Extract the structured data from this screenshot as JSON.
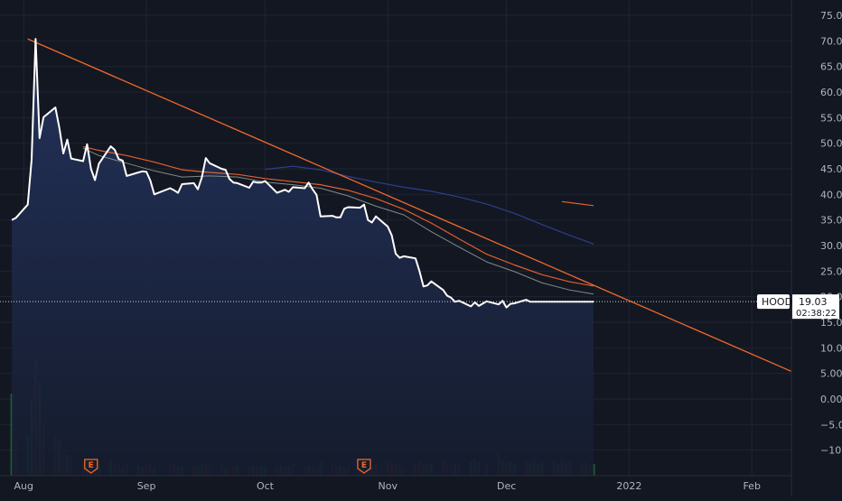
{
  "chart_data": {
    "type": "area",
    "symbol": "HOOD",
    "last_price": "19.03",
    "countdown": "02:38:22",
    "earnings_marker": "E",
    "y_ticks": [
      "75.00",
      "70.00",
      "65.00",
      "60.00",
      "55.00",
      "50.00",
      "45.00",
      "40.00",
      "35.00",
      "30.00",
      "25.00",
      "20.00",
      "15.00",
      "10.00",
      "5.00",
      "0.00",
      "−5.00",
      "−10.00"
    ],
    "y_tick_values": [
      75,
      70,
      65,
      60,
      55,
      50,
      45,
      40,
      35,
      30,
      25,
      20,
      15,
      10,
      5,
      0,
      -5,
      -10
    ],
    "x_ticks": [
      "Aug",
      "Sep",
      "Oct",
      "Nov",
      "Dec",
      "2022",
      "Feb"
    ],
    "x_tick_dates": [
      "2021-08-01",
      "2021-09-01",
      "2021-10-01",
      "2021-11-01",
      "2021-12-01",
      "2022-01-01",
      "2022-02-01"
    ],
    "ylim": [
      -15,
      78
    ],
    "xlim": [
      "2021-07-26",
      "2022-02-11"
    ],
    "grid": true,
    "colors": {
      "background": "#131722",
      "grid": "#1f2433",
      "price": "#ffffff",
      "area_top": "#24345f",
      "area_bottom": "#151c2e",
      "trendline": "#f0692a",
      "ma_short": "#e0612a",
      "ma_mid": "#7e8a86",
      "ma_long": "#2d3f8c",
      "last_price_box": "#ffffff",
      "volume_up": "#1e6b3a",
      "volume_down": "#6e2a2e",
      "earnings": "#f0692a"
    },
    "series": [
      {
        "name": "HOOD",
        "role": "price",
        "x": [
          "2021-07-29",
          "2021-07-30",
          "2021-08-02",
          "2021-08-03",
          "2021-08-04",
          "2021-08-05",
          "2021-08-06",
          "2021-08-09",
          "2021-08-10",
          "2021-08-11",
          "2021-08-12",
          "2021-08-13",
          "2021-08-16",
          "2021-08-17",
          "2021-08-18",
          "2021-08-19",
          "2021-08-20",
          "2021-08-23",
          "2021-08-24",
          "2021-08-25",
          "2021-08-26",
          "2021-08-27",
          "2021-08-30",
          "2021-08-31",
          "2021-09-01",
          "2021-09-02",
          "2021-09-03",
          "2021-09-07",
          "2021-09-08",
          "2021-09-09",
          "2021-09-10",
          "2021-09-13",
          "2021-09-14",
          "2021-09-15",
          "2021-09-16",
          "2021-09-17",
          "2021-09-20",
          "2021-09-21",
          "2021-09-22",
          "2021-09-23",
          "2021-09-24",
          "2021-09-27",
          "2021-09-28",
          "2021-09-29",
          "2021-09-30",
          "2021-10-01",
          "2021-10-04",
          "2021-10-05",
          "2021-10-06",
          "2021-10-07",
          "2021-10-08",
          "2021-10-11",
          "2021-10-12",
          "2021-10-13",
          "2021-10-14",
          "2021-10-15",
          "2021-10-18",
          "2021-10-19",
          "2021-10-20",
          "2021-10-21",
          "2021-10-22",
          "2021-10-25",
          "2021-10-26",
          "2021-10-27",
          "2021-10-28",
          "2021-10-29",
          "2021-11-01",
          "2021-11-02",
          "2021-11-03",
          "2021-11-04",
          "2021-11-05",
          "2021-11-08",
          "2021-11-09",
          "2021-11-10",
          "2021-11-11",
          "2021-11-12",
          "2021-11-15",
          "2021-11-16",
          "2021-11-17",
          "2021-11-18",
          "2021-11-19",
          "2021-11-22",
          "2021-11-23",
          "2021-11-24",
          "2021-11-26",
          "2021-11-29",
          "2021-11-30",
          "2021-12-01",
          "2021-12-02",
          "2021-12-03",
          "2021-12-06",
          "2021-12-07",
          "2021-12-08",
          "2021-12-09",
          "2021-12-10",
          "2021-12-13",
          "2021-12-14",
          "2021-12-15",
          "2021-12-16",
          "2021-12-17",
          "2021-12-20",
          "2021-12-21",
          "2021-12-22",
          "2021-12-23"
        ],
        "y": [
          35,
          35.4,
          38,
          46.8,
          70.4,
          51,
          55.1,
          57,
          53,
          48,
          50.7,
          47,
          46.5,
          49.8,
          45,
          42.8,
          46,
          49.4,
          48.7,
          46.9,
          46.6,
          43.6,
          44.3,
          44.5,
          44.4,
          42.7,
          40,
          41.2,
          40.8,
          40.3,
          42,
          42.2,
          41,
          43.3,
          47.1,
          46.1,
          45,
          44.8,
          43,
          42.3,
          42.2,
          41.3,
          42.5,
          42.3,
          42.3,
          42.6,
          40.3,
          40.6,
          40.9,
          40.5,
          41.4,
          41.2,
          42.3,
          41,
          39.9,
          35.7,
          35.8,
          35.5,
          35.5,
          37.2,
          37.5,
          37.4,
          38,
          35,
          34.5,
          35.7,
          33.7,
          32,
          28.4,
          27.6,
          27.9,
          27.5,
          25,
          22,
          22.2,
          23,
          21.3,
          20.2,
          19.8,
          19,
          19.2,
          18.1,
          18.9,
          18.2,
          19.1,
          18.5,
          19.2,
          17.9,
          18.6,
          18.7,
          19.4,
          19,
          19.03,
          19.03,
          19.03,
          19.03,
          19.03,
          19.03,
          19.03,
          19.03,
          19.03,
          19.03,
          19.03,
          19.03
        ]
      },
      {
        "name": "MA short",
        "role": "ma_short",
        "x": [
          "2021-08-16",
          "2021-08-20",
          "2021-08-27",
          "2021-09-03",
          "2021-09-10",
          "2021-09-17",
          "2021-09-24",
          "2021-10-01",
          "2021-10-08",
          "2021-10-15",
          "2021-10-22",
          "2021-10-29",
          "2021-11-05",
          "2021-11-12",
          "2021-11-19",
          "2021-11-26",
          "2021-12-03",
          "2021-12-10",
          "2021-12-17",
          "2021-12-23"
        ],
        "y": [
          49.3,
          48.6,
          47.6,
          46.3,
          44.8,
          44.3,
          43.9,
          43.1,
          42.5,
          41.9,
          40.8,
          39.2,
          37.1,
          34.4,
          31.3,
          28.3,
          26.2,
          24.3,
          22.9,
          22.1
        ]
      },
      {
        "name": "MA mid",
        "role": "ma_mid",
        "x": [
          "2021-08-16",
          "2021-08-20",
          "2021-08-27",
          "2021-09-03",
          "2021-09-10",
          "2021-09-17",
          "2021-09-24",
          "2021-10-01",
          "2021-10-08",
          "2021-10-15",
          "2021-10-22",
          "2021-10-29",
          "2021-11-05",
          "2021-11-12",
          "2021-11-19",
          "2021-11-26",
          "2021-12-03",
          "2021-12-10",
          "2021-12-17",
          "2021-12-23"
        ],
        "y": [
          49,
          47.6,
          46.1,
          44.6,
          43.4,
          43.6,
          43.4,
          42.4,
          41.9,
          41.2,
          39.7,
          37.7,
          36,
          32.7,
          29.7,
          26.8,
          24.9,
          22.7,
          21.3,
          20.5
        ]
      },
      {
        "name": "MA long",
        "role": "ma_long",
        "x": [
          "2021-10-01",
          "2021-10-08",
          "2021-10-15",
          "2021-10-22",
          "2021-10-29",
          "2021-11-05",
          "2021-11-12",
          "2021-11-19",
          "2021-11-26",
          "2021-12-03",
          "2021-12-10",
          "2021-12-17",
          "2021-12-23"
        ],
        "y": [
          44.9,
          45.5,
          44.8,
          43.5,
          42.4,
          41.4,
          40.6,
          39.5,
          38.1,
          36.3,
          34.1,
          32,
          30.3
        ]
      },
      {
        "name": "MA stub",
        "role": "ma_short",
        "x": [
          "2021-12-15",
          "2021-12-23"
        ],
        "y": [
          38.6,
          37.8
        ]
      },
      {
        "name": "Trendline",
        "role": "trendline",
        "x": [
          "2021-08-02",
          "2022-02-11"
        ],
        "y": [
          70.4,
          5.4
        ]
      }
    ],
    "volume": {
      "x": [
        "2021-07-29",
        "2021-07-30",
        "2021-08-02",
        "2021-08-03",
        "2021-08-04",
        "2021-08-05",
        "2021-08-06",
        "2021-08-09",
        "2021-08-10",
        "2021-08-11",
        "2021-08-12",
        "2021-08-13",
        "2021-08-16",
        "2021-08-17",
        "2021-08-18",
        "2021-08-19",
        "2021-08-20",
        "2021-08-23",
        "2021-08-24",
        "2021-08-25",
        "2021-08-26",
        "2021-08-27",
        "2021-08-30",
        "2021-08-31",
        "2021-09-01",
        "2021-09-02",
        "2021-09-03",
        "2021-09-07",
        "2021-09-08",
        "2021-09-09",
        "2021-09-10",
        "2021-09-13",
        "2021-09-14",
        "2021-09-15",
        "2021-09-16",
        "2021-09-17",
        "2021-09-20",
        "2021-09-21",
        "2021-09-22",
        "2021-09-23",
        "2021-09-24",
        "2021-09-27",
        "2021-09-28",
        "2021-09-29",
        "2021-09-30",
        "2021-10-01",
        "2021-10-04",
        "2021-10-05",
        "2021-10-06",
        "2021-10-07",
        "2021-10-08",
        "2021-10-11",
        "2021-10-12",
        "2021-10-13",
        "2021-10-14",
        "2021-10-15",
        "2021-10-18",
        "2021-10-19",
        "2021-10-20",
        "2021-10-21",
        "2021-10-22",
        "2021-10-25",
        "2021-10-26",
        "2021-10-27",
        "2021-10-28",
        "2021-10-29",
        "2021-11-01",
        "2021-11-02",
        "2021-11-03",
        "2021-11-04",
        "2021-11-05",
        "2021-11-08",
        "2021-11-09",
        "2021-11-10",
        "2021-11-11",
        "2021-11-12",
        "2021-11-15",
        "2021-11-16",
        "2021-11-17",
        "2021-11-18",
        "2021-11-19",
        "2021-11-22",
        "2021-11-23",
        "2021-11-24",
        "2021-11-26",
        "2021-11-29",
        "2021-11-30",
        "2021-12-01",
        "2021-12-02",
        "2021-12-03",
        "2021-12-06",
        "2021-12-07",
        "2021-12-08",
        "2021-12-09",
        "2021-12-10",
        "2021-12-13",
        "2021-12-14",
        "2021-12-15",
        "2021-12-16",
        "2021-12-17",
        "2021-12-20",
        "2021-12-21",
        "2021-12-22",
        "2021-12-23"
      ],
      "rel": [
        0.7,
        0.3,
        0.35,
        0.65,
        1.0,
        0.8,
        0.45,
        0.35,
        0.3,
        0.2,
        0.18,
        0.16,
        0.12,
        0.14,
        0.1,
        0.12,
        0.1,
        0.13,
        0.09,
        0.1,
        0.08,
        0.1,
        0.09,
        0.08,
        0.09,
        0.1,
        0.08,
        0.09,
        0.1,
        0.07,
        0.08,
        0.07,
        0.08,
        0.09,
        0.1,
        0.09,
        0.08,
        0.07,
        0.08,
        0.07,
        0.09,
        0.07,
        0.08,
        0.07,
        0.08,
        0.07,
        0.08,
        0.09,
        0.07,
        0.08,
        0.1,
        0.07,
        0.08,
        0.09,
        0.07,
        0.12,
        0.1,
        0.08,
        0.09,
        0.07,
        0.08,
        0.07,
        0.09,
        0.07,
        0.08,
        0.1,
        0.11,
        0.12,
        0.1,
        0.09,
        0.08,
        0.1,
        0.12,
        0.09,
        0.1,
        0.11,
        0.13,
        0.1,
        0.09,
        0.1,
        0.11,
        0.12,
        0.14,
        0.12,
        0.1,
        0.2,
        0.12,
        0.11,
        0.12,
        0.1,
        0.12,
        0.11,
        0.13,
        0.1,
        0.11,
        0.12,
        0.1,
        0.13,
        0.11,
        0.12,
        0.1,
        0.11,
        0.09,
        0.1
      ],
      "up": [
        1,
        0,
        1,
        1,
        0,
        1,
        0,
        0,
        1,
        0,
        1,
        0,
        0,
        1,
        0,
        0,
        1,
        1,
        0,
        0,
        1,
        0,
        1,
        1,
        0,
        0,
        1,
        0,
        0,
        1,
        1,
        0,
        1,
        1,
        0,
        0,
        0,
        1,
        0,
        0,
        1,
        0,
        1,
        0,
        1,
        1,
        0,
        1,
        0,
        1,
        0,
        0,
        1,
        0,
        0,
        1,
        0,
        0,
        1,
        1,
        0,
        1,
        0,
        0,
        1,
        0,
        0,
        0,
        0,
        1,
        0,
        0,
        0,
        1,
        0,
        1,
        0,
        0,
        0,
        1,
        0,
        1,
        0,
        1,
        0,
        0,
        1,
        0,
        1,
        1,
        0,
        1,
        0,
        1,
        1,
        0,
        1,
        0,
        1,
        0,
        0,
        1,
        0,
        1
      ]
    },
    "earnings": [
      "2021-08-18",
      "2021-10-26"
    ]
  }
}
